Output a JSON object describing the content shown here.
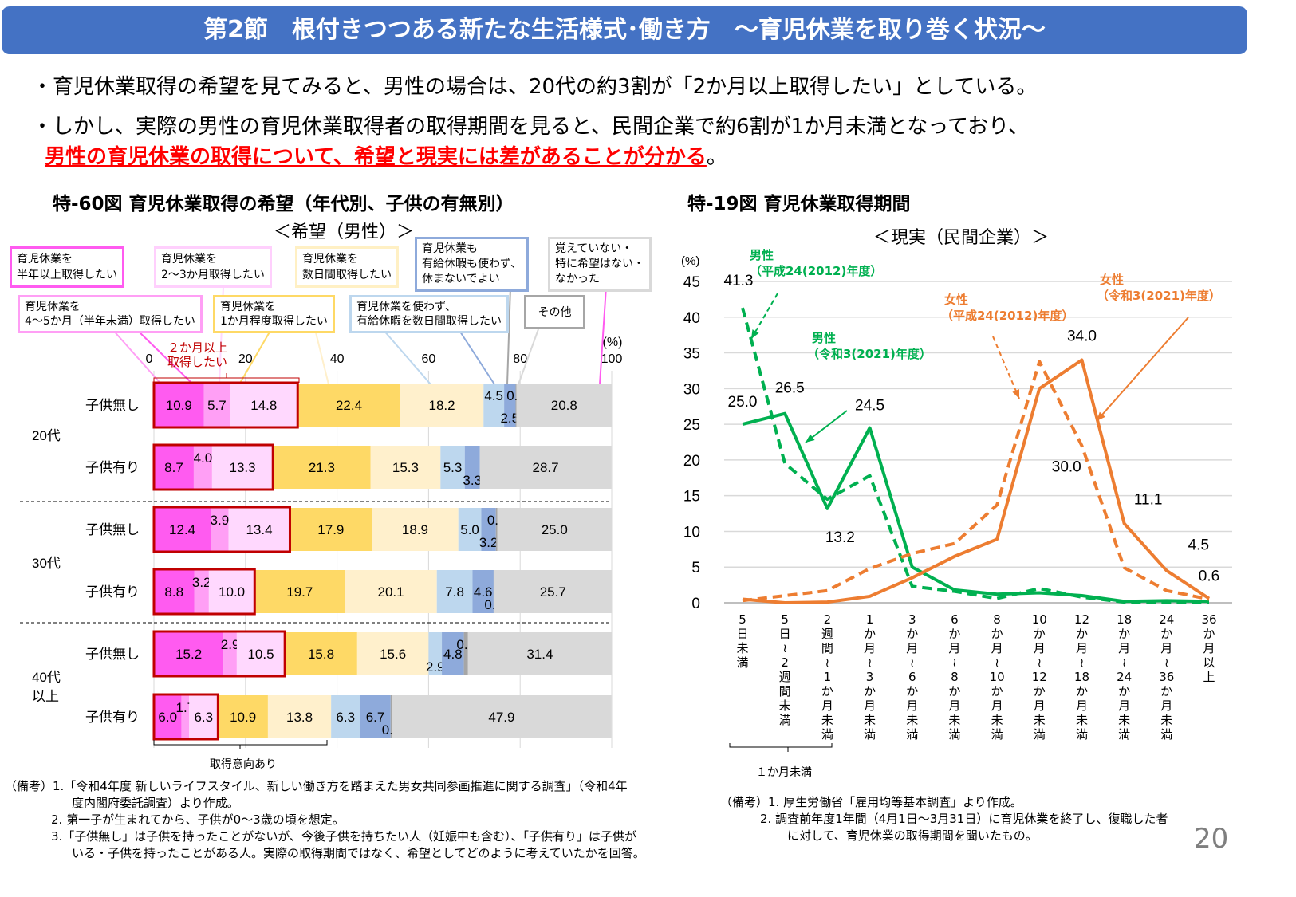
{
  "header": {
    "title": "第2節　根付きつつある新たな生活様式･働き方　～育児休業を取り巻く状況～"
  },
  "bullets": [
    "・育児休業取得の希望を見てみると、男性の場合は、20代の約3割が「2か月以上取得したい」としている。",
    "・しかし、実際の男性の育児休業取得者の取得期間を見ると、民間企業で約6割が1か月未満となっており、"
  ],
  "bullet_emphasis": "男性の育児休業の取得について、希望と現実には差があることが分かる",
  "bullet_emphasis_end": "。",
  "left_chart": {
    "title": "特-60図 育児休業取得の希望（年代別、子供の有無別）",
    "subtitle": "＜希望（男性）＞",
    "legend": [
      {
        "line1": "育児休業を",
        "line2": "半年以上取得したい"
      },
      {
        "line1": "育児休業を",
        "line2": "4～5か月（半年未満）取得したい"
      },
      {
        "line1": "育児休業を",
        "line2": "2～3か月取得したい"
      },
      {
        "line1": "育児休業を",
        "line2": "1か月程度取得したい"
      },
      {
        "line1": "育児休業を",
        "line2": "数日間取得したい"
      },
      {
        "line1": "育児休業を使わず、",
        "line2": "有給休暇を数日間取得したい"
      },
      {
        "line1": "育児休業も",
        "line2": "有給休暇も使わず、",
        "line3": "休まないでよい"
      },
      {
        "line1": "その他"
      },
      {
        "line1": "覚えていない・",
        "line2": "特に希望はない・",
        "line3": "なかった"
      }
    ],
    "annot_2months": [
      "２か月以上",
      "取得したい"
    ],
    "annot_intent": "取得意向あり",
    "notes": [
      "（備考）1.「令和4年度 新しいライフスタイル、新しい働き方を踏まえた男女共同参画推進に関する調査」（令和4年",
      "度内閣府委託調査）より作成。",
      "2. 第一子が生まれてから、子供が0～3歳の頃を想定。",
      "3.「子供無し」は子供を持ったことがないが、今後子供を持ちたい人（妊娠中も含む）、「子供有り」は子供が",
      "いる・子供を持ったことがある人。実際の取得期間ではなく、希望としてどのように考えていたかを回答。"
    ]
  },
  "right_chart": {
    "title": "特-19図 育児休業取得期間",
    "subtitle": "＜現実（民間企業）＞",
    "bracket_label": "１か月未満",
    "series_labels": [
      {
        "name": "男性",
        "year": "（平成24(2012)年度）"
      },
      {
        "name": "男性",
        "year": "（令和3(2021)年度）"
      },
      {
        "name": "女性",
        "year": "（平成24(2012)年度）"
      },
      {
        "name": "女性",
        "year": "（令和3(2021)年度）"
      }
    ],
    "notes": [
      "（備考）1. 厚生労働省「雇用均等基本調査」より作成。",
      "2. 調査前年度1年間（4月1日～3月31日）に育児休業を終了し、復職した者",
      "に対して、育児休業の取得期間を聞いたもの。"
    ]
  },
  "page_number": "20",
  "colors": {
    "header": "#4472c4",
    "male": "#00b050",
    "female": "#ed7d31",
    "highlight": "#c00000",
    "emphasis": "#ff0000"
  },
  "chart_data": [
    {
      "type": "bar",
      "orientation": "horizontal-stacked",
      "unit": "(%)",
      "xlim": [
        0,
        100
      ],
      "xticks": [
        0,
        20,
        40,
        60,
        80,
        100
      ],
      "groups": [
        "20代",
        "30代",
        "40代以上"
      ],
      "rows": [
        {
          "group": "20代",
          "label": "子供無し",
          "values": [
            10.9,
            5.7,
            14.8,
            22.4,
            18.2,
            4.5,
            2.5,
            0.2,
            20.8
          ]
        },
        {
          "group": "20代",
          "label": "子供有り",
          "values": [
            8.7,
            4.0,
            13.3,
            21.3,
            15.3,
            5.3,
            3.3,
            0,
            28.7
          ]
        },
        {
          "group": "30代",
          "label": "子供無し",
          "values": [
            12.4,
            3.9,
            13.4,
            17.9,
            18.9,
            5.0,
            3.2,
            0.3,
            25.0
          ]
        },
        {
          "group": "30代",
          "label": "子供有り",
          "values": [
            8.8,
            3.2,
            10.0,
            19.7,
            20.1,
            7.8,
            4.6,
            0.1,
            25.7
          ]
        },
        {
          "group": "40代以上",
          "label": "子供無し",
          "values": [
            15.2,
            2.9,
            10.5,
            15.8,
            15.6,
            2.9,
            4.8,
            0.9,
            31.4
          ]
        },
        {
          "group": "40代以上",
          "label": "子供有り",
          "values": [
            6.0,
            1.7,
            6.3,
            10.9,
            13.8,
            6.3,
            6.7,
            0.3,
            47.9
          ]
        }
      ],
      "segment_colors": [
        "#ff5bf0",
        "#ff9ff5",
        "#ffd8fe",
        "#fed966",
        "#fff0cc",
        "#bdd7ee",
        "#8eaadb",
        "#a6a6a6",
        "#d9d9d9"
      ],
      "grid": true
    },
    {
      "type": "line",
      "ylabel": "(%)",
      "ylim": [
        0,
        45
      ],
      "yticks": [
        0,
        5,
        10,
        15,
        20,
        25,
        30,
        35,
        40,
        45
      ],
      "categories": [
        "5日未満",
        "5日～2週間未満",
        "2週間～1か月未満",
        "1か月～3か月未満",
        "3か月～6か月未満",
        "6か月～8か月未満",
        "8か月～10か月未満",
        "10か月～12か月未満",
        "12か月～18か月未満",
        "18か月～24か月未満",
        "24か月～36か月未満",
        "36か月以上"
      ],
      "series": [
        {
          "name": "男性（平成24(2012)年度）",
          "color": "#00b050",
          "dash": true,
          "values": [
            41.3,
            19.5,
            14.5,
            17.8,
            2.3,
            1.6,
            0.6,
            2.0,
            0.8,
            0.1,
            0.1,
            0.1
          ]
        },
        {
          "name": "男性（令和3(2021)年度）",
          "color": "#00b050",
          "dash": false,
          "values": [
            25.0,
            26.5,
            13.2,
            24.5,
            5.0,
            1.8,
            1.2,
            1.4,
            1.0,
            0.2,
            0.3,
            0.2
          ]
        },
        {
          "name": "女性（平成24(2012)年度）",
          "color": "#ed7d31",
          "dash": true,
          "values": [
            0.3,
            1.0,
            1.7,
            4.8,
            6.9,
            8.3,
            13.7,
            33.8,
            22.0,
            4.9,
            1.7,
            0.5
          ]
        },
        {
          "name": "女性（令和3(2021)年度）",
          "color": "#ed7d31",
          "dash": false,
          "values": [
            0.5,
            0.0,
            0.1,
            0.9,
            3.5,
            6.5,
            8.9,
            30.0,
            34.0,
            11.1,
            4.5,
            0.6
          ]
        }
      ],
      "data_labels": [
        {
          "series": 0,
          "index": 0,
          "text": "41.3"
        },
        {
          "series": 1,
          "index": 0,
          "text": "25.0"
        },
        {
          "series": 1,
          "index": 1,
          "text": "26.5"
        },
        {
          "series": 1,
          "index": 2,
          "text": "13.2"
        },
        {
          "series": 1,
          "index": 3,
          "text": "24.5"
        },
        {
          "series": 3,
          "index": 7,
          "text": "30.0"
        },
        {
          "series": 3,
          "index": 8,
          "text": "34.0"
        },
        {
          "series": 3,
          "index": 9,
          "text": "11.1"
        },
        {
          "series": 3,
          "index": 10,
          "text": "4.5"
        },
        {
          "series": 3,
          "index": 11,
          "text": "0.6"
        }
      ],
      "grid": true
    }
  ]
}
